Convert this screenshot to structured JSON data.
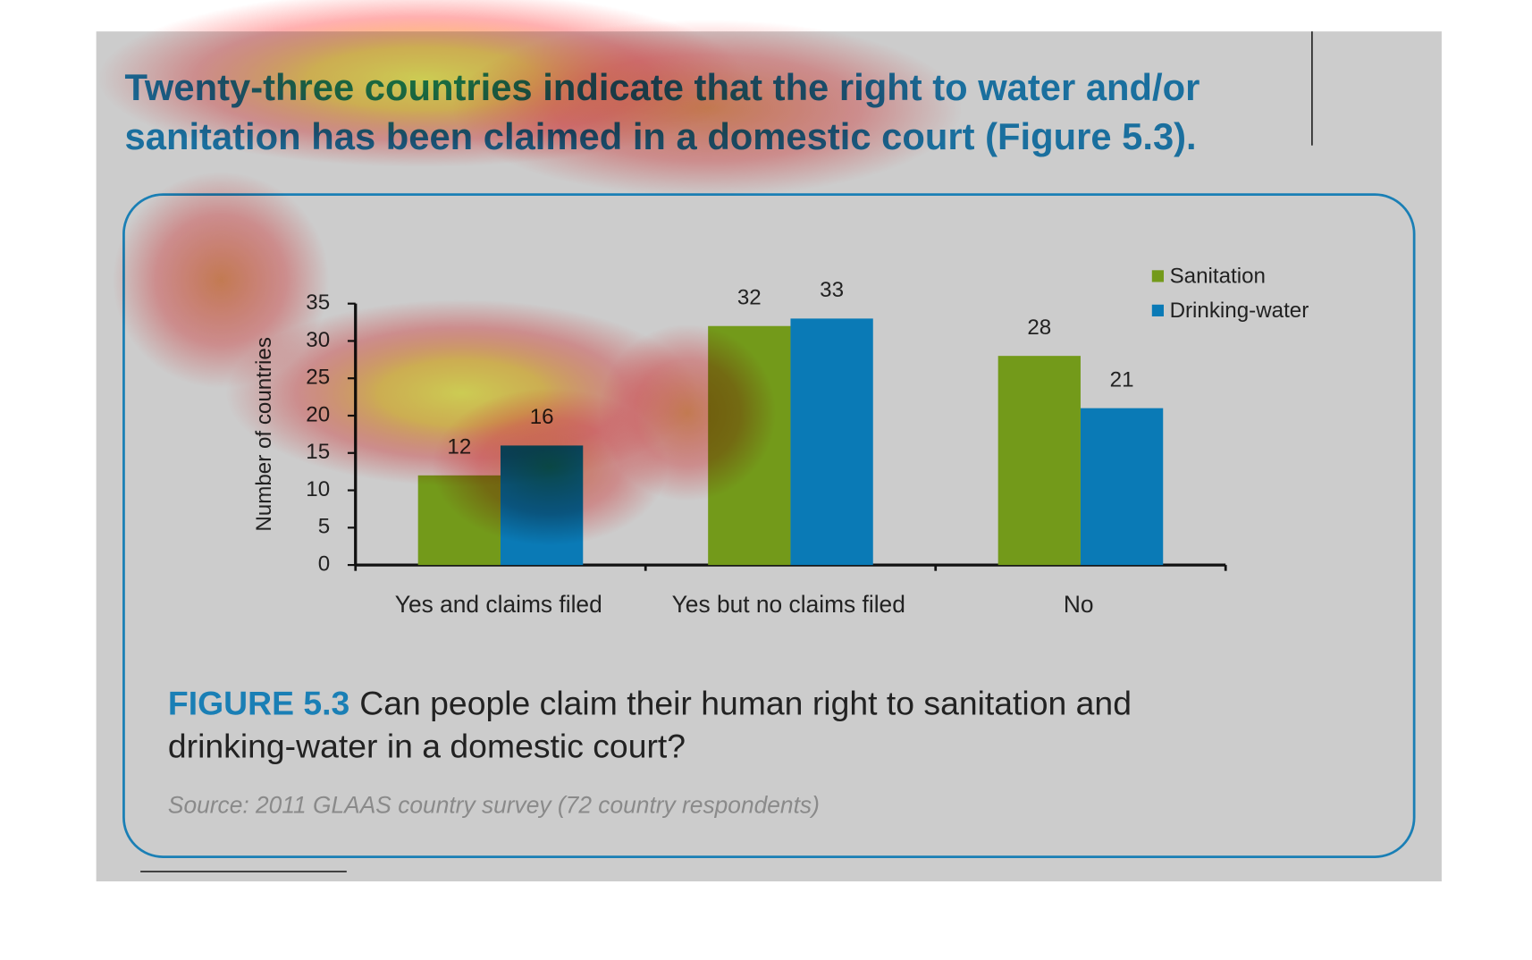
{
  "headline": [
    "Twenty-three countries indicate that the right to water and/or",
    "sanitation has been claimed in a domestic court (Figure 5.3)."
  ],
  "chart_data": {
    "type": "bar",
    "categories": [
      "Yes and claims filed",
      "Yes but no claims filed",
      "No"
    ],
    "series": [
      {
        "name": "Sanitation",
        "color": "#739a1a",
        "values": [
          12,
          32,
          28
        ]
      },
      {
        "name": "Drinking-water",
        "color": "#0a7ab6",
        "values": [
          16,
          33,
          21
        ]
      }
    ],
    "y_label": "Number of countries",
    "ylim": [
      0,
      35
    ],
    "yticks": [
      0,
      5,
      10,
      15,
      20,
      25,
      30,
      35
    ]
  },
  "figure": {
    "label": "FIGURE 5.3",
    "caption": [
      "Can people claim their human right to sanitation and",
      "drinking-water in a domestic court?"
    ],
    "source": "Source: 2011 GLAAS country survey (72 country respondents)"
  }
}
